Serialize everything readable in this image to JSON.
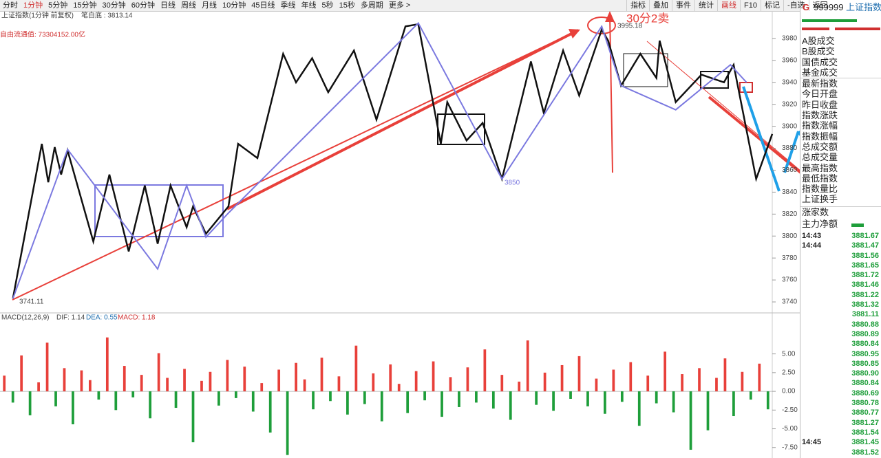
{
  "toolbar": {
    "periods": [
      "分时",
      "1分钟",
      "5分钟",
      "15分钟",
      "30分钟",
      "60分钟",
      "日线",
      "周线",
      "月线",
      "10分钟",
      "45日线",
      "季线",
      "年线",
      "5秒",
      "15秒",
      "多周期",
      "更多 >"
    ],
    "tools": [
      "指标",
      "叠加",
      "事件",
      "统计",
      "画线",
      "F10",
      "标记",
      "-自选",
      "返回"
    ]
  },
  "chart_header": {
    "name": "上证指数(1分钟 前复权)",
    "indicator": "笔白底 : 3813.14",
    "float_value": "自由流通值: 73304152.00亿"
  },
  "annotations": {
    "high": "3995.18",
    "mid_low": "3850",
    "low": "3741.11",
    "signal": "30分2卖"
  },
  "chart_data": [
    {
      "type": "line",
      "xlim": [
        0,
        240
      ],
      "ylim": [
        3730,
        4005
      ],
      "yticks": [
        3740,
        3760,
        3780,
        3800,
        3820,
        3840,
        3860,
        3880,
        3900,
        3920,
        3940,
        3960,
        3980
      ],
      "series": [
        {
          "color": "#111111",
          "x": [
            4,
            13,
            15,
            17,
            19,
            21,
            29,
            34,
            40,
            45,
            49,
            53,
            58,
            60,
            64,
            71,
            74,
            80,
            88,
            92,
            97,
            102,
            110,
            117,
            126,
            130,
            137,
            139,
            145,
            150,
            156,
            165,
            169,
            175,
            180,
            187,
            189,
            193,
            199,
            204,
            205,
            210,
            218,
            225,
            228,
            235,
            240
          ],
          "values": [
            3743,
            3884,
            3849,
            3881,
            3856,
            3878,
            3795,
            3856,
            3786,
            3846,
            3793,
            3846,
            3808,
            3827,
            3802,
            3827,
            3884,
            3871,
            3966,
            3940,
            3962,
            3931,
            3969,
            3906,
            3991,
            3993,
            3884,
            3922,
            3887,
            3903,
            3852,
            3959,
            3912,
            3969,
            3928,
            3988,
            3978,
            3937,
            3966,
            3944,
            3978,
            3922,
            3947,
            3940,
            3956,
            3852,
            3893
          ]
        },
        {
          "color": "#7b79e0",
          "x": [
            4,
            21,
            49,
            58,
            64,
            71,
            130,
            156,
            187,
            193,
            210,
            227,
            232
          ],
          "values": [
            3743,
            3879,
            3770,
            3846,
            3799,
            3821,
            3994,
            3852,
            3991,
            3937,
            3915,
            3956,
            3940
          ]
        }
      ]
    },
    {
      "type": "bar",
      "title": "MACD(12,26,9)",
      "dif": "DIF: 1.14",
      "dea": "DEA: 0.55",
      "macd": "MACD: 1.18",
      "colors": {
        "up": "#e8403a",
        "down": "#1e9e3a"
      },
      "ylim": [
        -8.9,
        10.2
      ],
      "yticks": [
        {
          "value": 5,
          "label": "5.00"
        },
        {
          "value": 2.5,
          "label": "2.50"
        },
        {
          "value": 0,
          "label": "0.00"
        },
        {
          "value": -2.5,
          "label": "-2.50"
        },
        {
          "value": -5,
          "label": "-5.00"
        },
        {
          "value": -7.5,
          "label": "-7.50"
        }
      ],
      "values": [
        2.1,
        -1.5,
        4.8,
        -3.2,
        1.2,
        6.5,
        -2.0,
        3.1,
        -4.4,
        2.8,
        1.5,
        -1.1,
        7.2,
        -2.5,
        3.4,
        -0.8,
        2.2,
        -3.6,
        5.1,
        1.8,
        -2.2,
        3.0,
        -6.8,
        1.4,
        2.6,
        -1.9,
        4.2,
        -0.9,
        3.3,
        -2.7,
        1.1,
        -5.5,
        2.9,
        -8.5,
        3.8,
        1.6,
        -2.4,
        4.5,
        -1.3,
        2.0,
        -3.1,
        6.1,
        -1.7,
        2.4,
        -4.0,
        3.6,
        1.0,
        -2.9,
        2.7,
        -1.2,
        4.0,
        -3.4,
        1.9,
        -2.1,
        3.2,
        -1.5,
        5.6,
        -2.3,
        2.2,
        -3.8,
        1.3,
        6.8,
        -1.8,
        2.5,
        -2.6,
        3.5,
        -1.0,
        4.7,
        -2.0,
        1.7,
        -3.0,
        2.9,
        -1.4,
        3.9,
        -4.6,
        2.1,
        -1.6,
        5.3,
        -2.8,
        2.3,
        -7.8,
        3.1,
        -5.2,
        1.8,
        4.4,
        -3.3,
        2.6,
        -1.1,
        3.7,
        -2.4
      ]
    }
  ],
  "side_panel": {
    "badge": "G",
    "code": "999999",
    "name": "上证指数",
    "labels": [
      "A股成交",
      "B股成交",
      "国债成交",
      "基金成交",
      "最新指数",
      "今日开盘",
      "昨日收盘",
      "指数涨跌",
      "指数涨幅",
      "指数振幅",
      "总成交额",
      "总成交量",
      "最高指数",
      "最低指数",
      "指数量比",
      "上证换手"
    ],
    "rise_count": "涨家数",
    "main_net": "主力净额",
    "ticks": [
      {
        "time": "14:43",
        "price": "3881.67"
      },
      {
        "time": "14:44",
        "price": "3881.47"
      },
      {
        "time": null,
        "price": "3881.56"
      },
      {
        "time": null,
        "price": "3881.65"
      },
      {
        "time": null,
        "price": "3881.72"
      },
      {
        "time": null,
        "price": "3881.46"
      },
      {
        "time": null,
        "price": "3881.22"
      },
      {
        "time": null,
        "price": "3881.32"
      },
      {
        "time": null,
        "price": "3881.11"
      },
      {
        "time": null,
        "price": "3880.88"
      },
      {
        "time": null,
        "price": "3880.89"
      },
      {
        "time": null,
        "price": "3880.84"
      },
      {
        "time": null,
        "price": "3880.95"
      },
      {
        "time": null,
        "price": "3880.85"
      },
      {
        "time": null,
        "price": "3880.90"
      },
      {
        "time": null,
        "price": "3880.84"
      },
      {
        "time": null,
        "price": "3880.69"
      },
      {
        "time": null,
        "price": "3880.78"
      },
      {
        "time": null,
        "price": "3880.77"
      },
      {
        "time": null,
        "price": "3881.27"
      },
      {
        "time": null,
        "price": "3881.54"
      },
      {
        "time": "14:45",
        "price": "3881.45"
      },
      {
        "time": null,
        "price": "3881.52"
      }
    ]
  }
}
